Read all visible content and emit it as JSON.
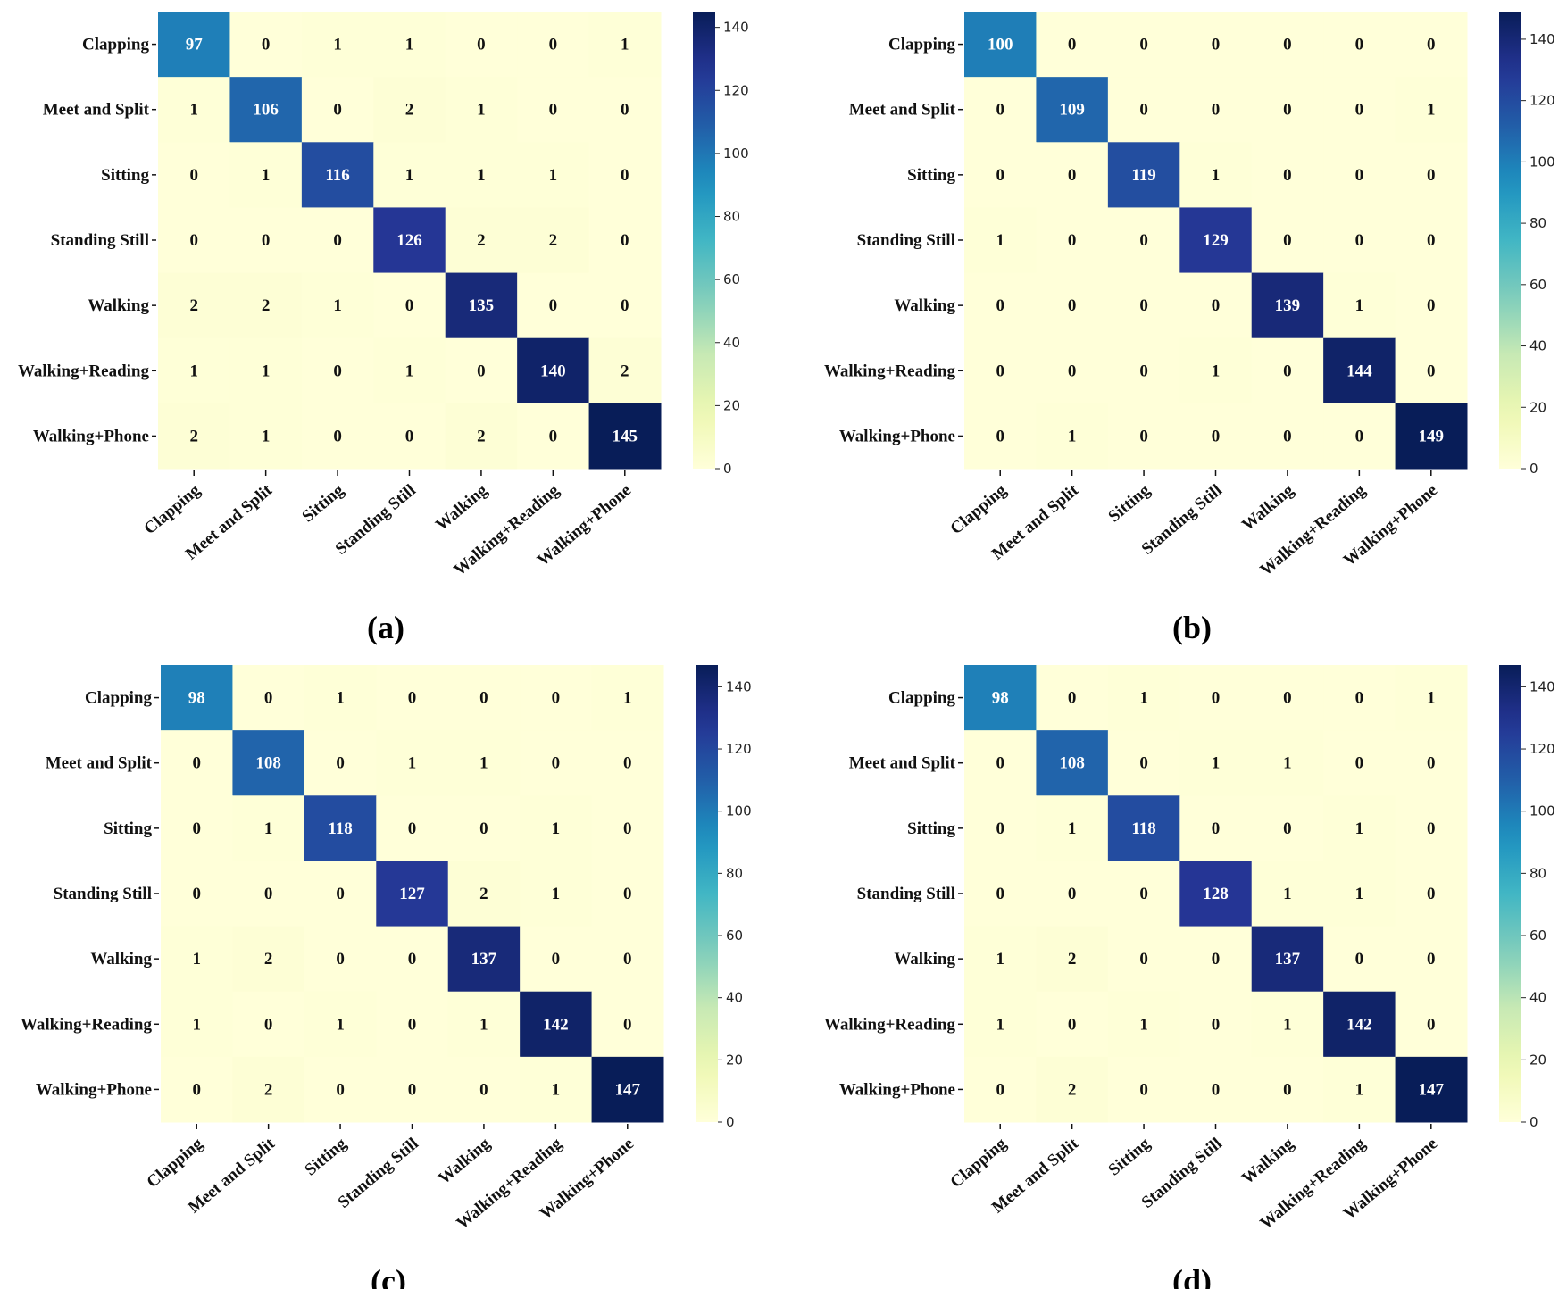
{
  "chart_data": [
    {
      "type": "heatmap",
      "caption": "(a)",
      "row_labels": [
        "Clapping",
        "Meet and Split",
        "Sitting",
        "Standing Still",
        "Walking",
        "Walking+Reading",
        "Walking+Phone"
      ],
      "col_labels": [
        "Clapping",
        "Meet and Split",
        "Sitting",
        "Standing Still",
        "Walking",
        "Walking+Reading",
        "Walking+Phone"
      ],
      "matrix": [
        [
          97,
          0,
          1,
          1,
          0,
          0,
          1
        ],
        [
          1,
          106,
          0,
          2,
          1,
          0,
          0
        ],
        [
          0,
          1,
          116,
          1,
          1,
          1,
          0
        ],
        [
          0,
          0,
          0,
          126,
          2,
          2,
          0
        ],
        [
          2,
          2,
          1,
          0,
          135,
          0,
          0
        ],
        [
          1,
          1,
          0,
          1,
          0,
          140,
          2
        ],
        [
          2,
          1,
          0,
          0,
          2,
          0,
          145
        ]
      ],
      "colorbar": {
        "range": [
          0,
          145
        ],
        "ticks": [
          0,
          20,
          40,
          60,
          80,
          100,
          120,
          140
        ],
        "colormap": "YlGnBu"
      }
    },
    {
      "type": "heatmap",
      "caption": "(b)",
      "row_labels": [
        "Clapping",
        "Meet and Split",
        "Sitting",
        "Standing Still",
        "Walking",
        "Walking+Reading",
        "Walking+Phone"
      ],
      "col_labels": [
        "Clapping",
        "Meet and Split",
        "Sitting",
        "Standing Still",
        "Walking",
        "Walking+Reading",
        "Walking+Phone"
      ],
      "matrix": [
        [
          100,
          0,
          0,
          0,
          0,
          0,
          0
        ],
        [
          0,
          109,
          0,
          0,
          0,
          0,
          1
        ],
        [
          0,
          0,
          119,
          1,
          0,
          0,
          0
        ],
        [
          1,
          0,
          0,
          129,
          0,
          0,
          0
        ],
        [
          0,
          0,
          0,
          0,
          139,
          1,
          0
        ],
        [
          0,
          0,
          0,
          1,
          0,
          144,
          0
        ],
        [
          0,
          1,
          0,
          0,
          0,
          0,
          149
        ]
      ],
      "colorbar": {
        "range": [
          0,
          149
        ],
        "ticks": [
          0,
          20,
          40,
          60,
          80,
          100,
          120,
          140
        ],
        "colormap": "YlGnBu"
      }
    },
    {
      "type": "heatmap",
      "caption": "(c)",
      "row_labels": [
        "Clapping",
        "Meet and Split",
        "Sitting",
        "Standing Still",
        "Walking",
        "Walking+Reading",
        "Walking+Phone"
      ],
      "col_labels": [
        "Clapping",
        "Meet and Split",
        "Sitting",
        "Standing Still",
        "Walking",
        "Walking+Reading",
        "Walking+Phone"
      ],
      "matrix": [
        [
          98,
          0,
          1,
          0,
          0,
          0,
          1
        ],
        [
          0,
          108,
          0,
          1,
          1,
          0,
          0
        ],
        [
          0,
          1,
          118,
          0,
          0,
          1,
          0
        ],
        [
          0,
          0,
          0,
          127,
          2,
          1,
          0
        ],
        [
          1,
          2,
          0,
          0,
          137,
          0,
          0
        ],
        [
          1,
          0,
          1,
          0,
          1,
          142,
          0
        ],
        [
          0,
          2,
          0,
          0,
          0,
          1,
          147
        ]
      ],
      "colorbar": {
        "range": [
          0,
          147
        ],
        "ticks": [
          0,
          20,
          40,
          60,
          80,
          100,
          120,
          140
        ],
        "colormap": "YlGnBu"
      }
    },
    {
      "type": "heatmap",
      "caption": "(d)",
      "row_labels": [
        "Clapping",
        "Meet and Split",
        "Sitting",
        "Standing Still",
        "Walking",
        "Walking+Reading",
        "Walking+Phone"
      ],
      "col_labels": [
        "Clapping",
        "Meet and Split",
        "Sitting",
        "Standing Still",
        "Walking",
        "Walking+Reading",
        "Walking+Phone"
      ],
      "matrix": [
        [
          98,
          0,
          1,
          0,
          0,
          0,
          1
        ],
        [
          0,
          108,
          0,
          1,
          1,
          0,
          0
        ],
        [
          0,
          1,
          118,
          0,
          0,
          1,
          0
        ],
        [
          0,
          0,
          0,
          128,
          1,
          1,
          0
        ],
        [
          1,
          2,
          0,
          0,
          137,
          0,
          0
        ],
        [
          1,
          0,
          1,
          0,
          1,
          142,
          0
        ],
        [
          0,
          2,
          0,
          0,
          0,
          1,
          147
        ]
      ],
      "colorbar": {
        "range": [
          0,
          147
        ],
        "ticks": [
          0,
          20,
          40,
          60,
          80,
          100,
          120,
          140
        ],
        "colormap": "YlGnBu"
      }
    }
  ],
  "colors": {
    "colormap_stops": [
      "#ffffd9",
      "#edf8b1",
      "#c7e9b4",
      "#7fcdbb",
      "#41b6c4",
      "#1d91c0",
      "#225ea8",
      "#253494",
      "#081d58"
    ],
    "text_dark": "#111111",
    "text_light": "#ffffff"
  }
}
